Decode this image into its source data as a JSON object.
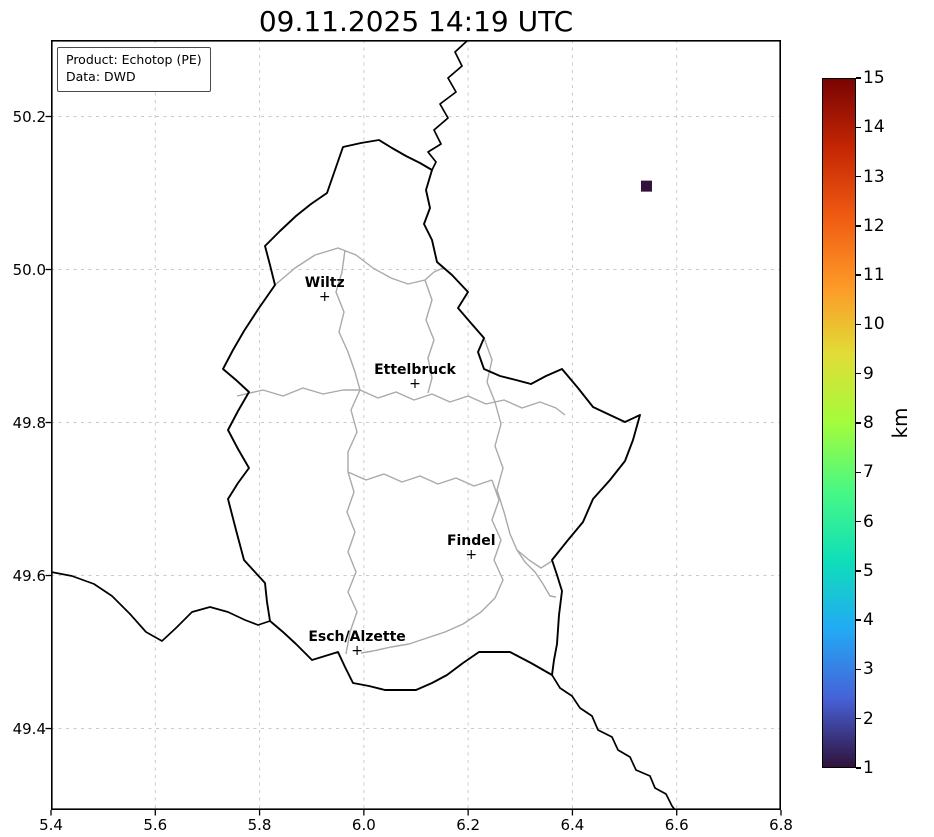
{
  "title": "09.11.2025 14:19 UTC",
  "info_box": {
    "product": "Product: Echotop (PE)",
    "source": "Data: DWD"
  },
  "chart_data": {
    "type": "map",
    "subtype": "weather-radar-echotop",
    "title": "09.11.2025 14:19 UTC",
    "product": "Echotop (PE)",
    "source": "DWD",
    "region": "Luxembourg",
    "grid": {
      "style": "dashed",
      "color": "#c9c9c9"
    },
    "x_axis": {
      "range": [
        5.4,
        6.8
      ],
      "ticks": [
        5.4,
        5.6,
        5.8,
        6.0,
        6.2,
        6.4,
        6.6,
        6.8
      ],
      "tick_labels": [
        "5.4",
        "5.6",
        "5.8",
        "6.0",
        "6.2",
        "6.4",
        "6.6",
        "6.8"
      ]
    },
    "y_axis": {
      "range": [
        49.2935,
        50.3
      ],
      "ticks": [
        49.4,
        49.6,
        49.8,
        50.0,
        50.2
      ],
      "tick_labels": [
        "49.4",
        "49.6",
        "49.8",
        "50.0",
        "50.2"
      ]
    },
    "cities": [
      {
        "name": "Wiltz",
        "lon": 5.925,
        "lat": 49.964
      },
      {
        "name": "Ettelbruck",
        "lon": 6.098,
        "lat": 49.85
      },
      {
        "name": "Findel",
        "lon": 6.206,
        "lat": 49.627
      },
      {
        "name": "Esch/Alzette",
        "lon": 5.987,
        "lat": 49.501
      }
    ],
    "echotop_pixels": [
      {
        "lon": 6.542,
        "lat": 50.109,
        "value_km": 1,
        "color": "#30123b"
      }
    ],
    "colorbar": {
      "label": "km",
      "min": 1,
      "max": 15,
      "ticks": [
        1,
        2,
        3,
        4,
        5,
        6,
        7,
        8,
        9,
        10,
        11,
        12,
        13,
        14,
        15
      ],
      "colormap": "turbo",
      "gradient_bottom_to_top": [
        "#30123b",
        "#4662d8",
        "#22aaf5",
        "#0fdeb8",
        "#47f884",
        "#a3fc3c",
        "#e1dd37",
        "#fd9827",
        "#f05b12",
        "#c42603",
        "#7a0403"
      ]
    }
  }
}
